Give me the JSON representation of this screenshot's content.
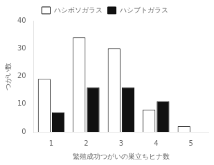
{
  "chart_data": {
    "type": "bar",
    "categories": [
      "1",
      "2",
      "3",
      "4",
      "5"
    ],
    "series": [
      {
        "name": "ハシボソガラス",
        "color": "#ffffff",
        "values": [
          19,
          34,
          30,
          8,
          2
        ]
      },
      {
        "name": "ハシブトガラス",
        "color": "#111111",
        "values": [
          7,
          16,
          16,
          11,
          0
        ]
      }
    ],
    "xlabel": "繁殖成功つがいの巣立ちヒナ数",
    "ylabel": "つがい数",
    "ylim": [
      0,
      40
    ],
    "yticks": [
      0,
      10,
      20,
      30,
      40
    ],
    "grid": false,
    "legend": "top"
  }
}
